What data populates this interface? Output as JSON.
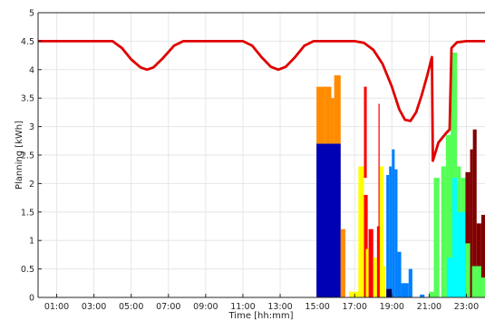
{
  "chart_data": {
    "type": "bar",
    "xlabel": "Time [hh:mm]",
    "ylabel": "Planning [kWh]",
    "xlim": [
      0,
      24
    ],
    "ylim": [
      0,
      5
    ],
    "grid": true,
    "x_ticks": [
      {
        "value": 1,
        "label": "01:00"
      },
      {
        "value": 3,
        "label": "03:00"
      },
      {
        "value": 5,
        "label": "05:00"
      },
      {
        "value": 7,
        "label": "07:00"
      },
      {
        "value": 9,
        "label": "09:00"
      },
      {
        "value": 11,
        "label": "11:00"
      },
      {
        "value": 13,
        "label": "13:00"
      },
      {
        "value": 15,
        "label": "15:00"
      },
      {
        "value": 17,
        "label": "17:00"
      },
      {
        "value": 19,
        "label": "19:00"
      },
      {
        "value": 21,
        "label": "21:00"
      },
      {
        "value": 23,
        "label": "23:00"
      }
    ],
    "y_ticks": [
      {
        "value": 0,
        "label": "0"
      },
      {
        "value": 0.5,
        "label": "0.5"
      },
      {
        "value": 1,
        "label": "1"
      },
      {
        "value": 1.5,
        "label": "1.5"
      },
      {
        "value": 2,
        "label": "2"
      },
      {
        "value": 2.5,
        "label": "2.5"
      },
      {
        "value": 3,
        "label": "3"
      },
      {
        "value": 3.5,
        "label": "3.5"
      },
      {
        "value": 4,
        "label": "4"
      },
      {
        "value": 4.5,
        "label": "4.5"
      },
      {
        "value": 5,
        "label": "5"
      }
    ],
    "line_series": {
      "color": "#e00000",
      "points": [
        [
          0,
          4.5
        ],
        [
          3.5,
          4.5
        ],
        [
          4.0,
          4.5
        ],
        [
          4.5,
          4.38
        ],
        [
          5.0,
          4.18
        ],
        [
          5.5,
          4.04
        ],
        [
          5.85,
          4.0
        ],
        [
          6.2,
          4.04
        ],
        [
          6.7,
          4.2
        ],
        [
          7.3,
          4.42
        ],
        [
          7.8,
          4.5
        ],
        [
          11.0,
          4.5
        ],
        [
          11.5,
          4.42
        ],
        [
          12.0,
          4.22
        ],
        [
          12.5,
          4.05
        ],
        [
          12.9,
          4.0
        ],
        [
          13.3,
          4.05
        ],
        [
          13.8,
          4.22
        ],
        [
          14.3,
          4.42
        ],
        [
          14.8,
          4.5
        ],
        [
          17.0,
          4.5
        ],
        [
          17.5,
          4.47
        ],
        [
          18.0,
          4.35
        ],
        [
          18.5,
          4.1
        ],
        [
          19.0,
          3.7
        ],
        [
          19.4,
          3.3
        ],
        [
          19.7,
          3.12
        ],
        [
          20.0,
          3.1
        ],
        [
          20.3,
          3.25
        ],
        [
          20.6,
          3.55
        ],
        [
          20.9,
          3.9
        ],
        [
          21.15,
          4.22
        ],
        [
          21.2,
          2.4
        ],
        [
          21.5,
          2.72
        ],
        [
          21.9,
          2.88
        ],
        [
          22.1,
          2.95
        ],
        [
          22.2,
          4.38
        ],
        [
          22.5,
          4.48
        ],
        [
          23.0,
          4.5
        ],
        [
          24.0,
          4.5
        ]
      ]
    },
    "bars": [
      {
        "x0": 14.95,
        "x1": 16.25,
        "y0": 0,
        "y1": 2.7,
        "color": "#0000b4"
      },
      {
        "x0": 14.95,
        "x1": 15.4,
        "y0": 2.7,
        "y1": 3.7,
        "color": "#ff8c00"
      },
      {
        "x0": 15.4,
        "x1": 15.75,
        "y0": 2.7,
        "y1": 3.7,
        "color": "#ff8c00"
      },
      {
        "x0": 15.75,
        "x1": 15.9,
        "y0": 2.7,
        "y1": 3.5,
        "color": "#ff8c00"
      },
      {
        "x0": 15.9,
        "x1": 16.25,
        "y0": 2.7,
        "y1": 3.9,
        "color": "#ff8c00"
      },
      {
        "x0": 16.25,
        "x1": 16.5,
        "y0": 0,
        "y1": 1.2,
        "color": "#ff8c00"
      },
      {
        "x0": 16.7,
        "x1": 17.3,
        "y0": 0,
        "y1": 0.1,
        "color": "#ffff00"
      },
      {
        "x0": 17.2,
        "x1": 17.5,
        "y0": 0,
        "y1": 2.3,
        "color": "#ffff00"
      },
      {
        "x0": 17.5,
        "x1": 17.65,
        "y0": 2.1,
        "y1": 3.7,
        "color": "#ff0000"
      },
      {
        "x0": 17.5,
        "x1": 17.7,
        "y0": 0,
        "y1": 1.8,
        "color": "#ff0000"
      },
      {
        "x0": 17.6,
        "x1": 17.85,
        "y0": 0,
        "y1": 0.85,
        "color": "#ffff00"
      },
      {
        "x0": 17.75,
        "x1": 18.0,
        "y0": 0,
        "y1": 1.2,
        "color": "#ff0000"
      },
      {
        "x0": 18.0,
        "x1": 18.2,
        "y0": 0,
        "y1": 0.7,
        "color": "#ffff00"
      },
      {
        "x0": 18.2,
        "x1": 18.35,
        "y0": 0,
        "y1": 1.25,
        "color": "#ff0000"
      },
      {
        "x0": 18.28,
        "x1": 18.34,
        "y0": 1.25,
        "y1": 3.4,
        "color": "#ff0000"
      },
      {
        "x0": 18.35,
        "x1": 18.55,
        "y0": 0,
        "y1": 2.3,
        "color": "#ffff00"
      },
      {
        "x0": 18.55,
        "x1": 18.65,
        "y0": 0,
        "y1": 0.55,
        "color": "#ffff00"
      },
      {
        "x0": 18.7,
        "x1": 19.0,
        "y0": 0,
        "y1": 0.15,
        "color": "#000050"
      },
      {
        "x0": 18.7,
        "x1": 18.85,
        "y0": 0.15,
        "y1": 2.15,
        "color": "#0080ff"
      },
      {
        "x0": 18.85,
        "x1": 19.0,
        "y0": 0.15,
        "y1": 2.3,
        "color": "#0080ff"
      },
      {
        "x0": 19.0,
        "x1": 19.15,
        "y0": 0,
        "y1": 2.6,
        "color": "#0080ff"
      },
      {
        "x0": 19.15,
        "x1": 19.3,
        "y0": 0,
        "y1": 2.25,
        "color": "#0080ff"
      },
      {
        "x0": 19.3,
        "x1": 19.5,
        "y0": 0,
        "y1": 0.8,
        "color": "#0080ff"
      },
      {
        "x0": 19.5,
        "x1": 19.9,
        "y0": 0,
        "y1": 0.25,
        "color": "#0080ff"
      },
      {
        "x0": 19.9,
        "x1": 20.1,
        "y0": 0,
        "y1": 0.5,
        "color": "#0080ff"
      },
      {
        "x0": 20.5,
        "x1": 20.75,
        "y0": 0,
        "y1": 0.05,
        "color": "#0080ff"
      },
      {
        "x0": 21.0,
        "x1": 21.25,
        "y0": 0,
        "y1": 0.1,
        "color": "#55ff55"
      },
      {
        "x0": 21.25,
        "x1": 21.55,
        "y0": 0,
        "y1": 2.1,
        "color": "#55ff55"
      },
      {
        "x0": 21.65,
        "x1": 21.9,
        "y0": 0,
        "y1": 2.3,
        "color": "#55ff55"
      },
      {
        "x0": 21.9,
        "x1": 22.15,
        "y0": 0,
        "y1": 2.85,
        "color": "#55ff55"
      },
      {
        "x0": 22.15,
        "x1": 22.5,
        "y0": 0,
        "y1": 4.3,
        "color": "#55ff55"
      },
      {
        "x0": 21.95,
        "x1": 22.25,
        "y0": 0,
        "y1": 0.7,
        "color": "#00ffff"
      },
      {
        "x0": 22.25,
        "x1": 22.5,
        "y0": 0,
        "y1": 2.1,
        "color": "#00ffff"
      },
      {
        "x0": 22.5,
        "x1": 22.7,
        "y0": 0,
        "y1": 2.3,
        "color": "#55ff55"
      },
      {
        "x0": 22.7,
        "x1": 22.95,
        "y0": 0,
        "y1": 2.1,
        "color": "#55ff55"
      },
      {
        "x0": 22.5,
        "x1": 22.95,
        "y0": 0,
        "y1": 1.5,
        "color": "#00ffff"
      },
      {
        "x0": 22.95,
        "x1": 23.2,
        "y0": 0,
        "y1": 2.2,
        "color": "#800000"
      },
      {
        "x0": 22.95,
        "x1": 23.2,
        "y0": 0,
        "y1": 0.95,
        "color": "#55ff55"
      },
      {
        "x0": 23.2,
        "x1": 23.35,
        "y0": 0,
        "y1": 2.6,
        "color": "#800000"
      },
      {
        "x0": 23.35,
        "x1": 23.55,
        "y0": 0,
        "y1": 2.95,
        "color": "#800000"
      },
      {
        "x0": 23.55,
        "x1": 23.8,
        "y0": 0,
        "y1": 1.3,
        "color": "#800000"
      },
      {
        "x0": 23.8,
        "x1": 24.0,
        "y0": 0,
        "y1": 1.45,
        "color": "#800000"
      },
      {
        "x0": 23.3,
        "x1": 23.8,
        "y0": 0,
        "y1": 0.55,
        "color": "#55ff55"
      },
      {
        "x0": 23.6,
        "x1": 24.0,
        "y0": 0,
        "y1": 0.35,
        "color": "#55ff55"
      }
    ]
  }
}
